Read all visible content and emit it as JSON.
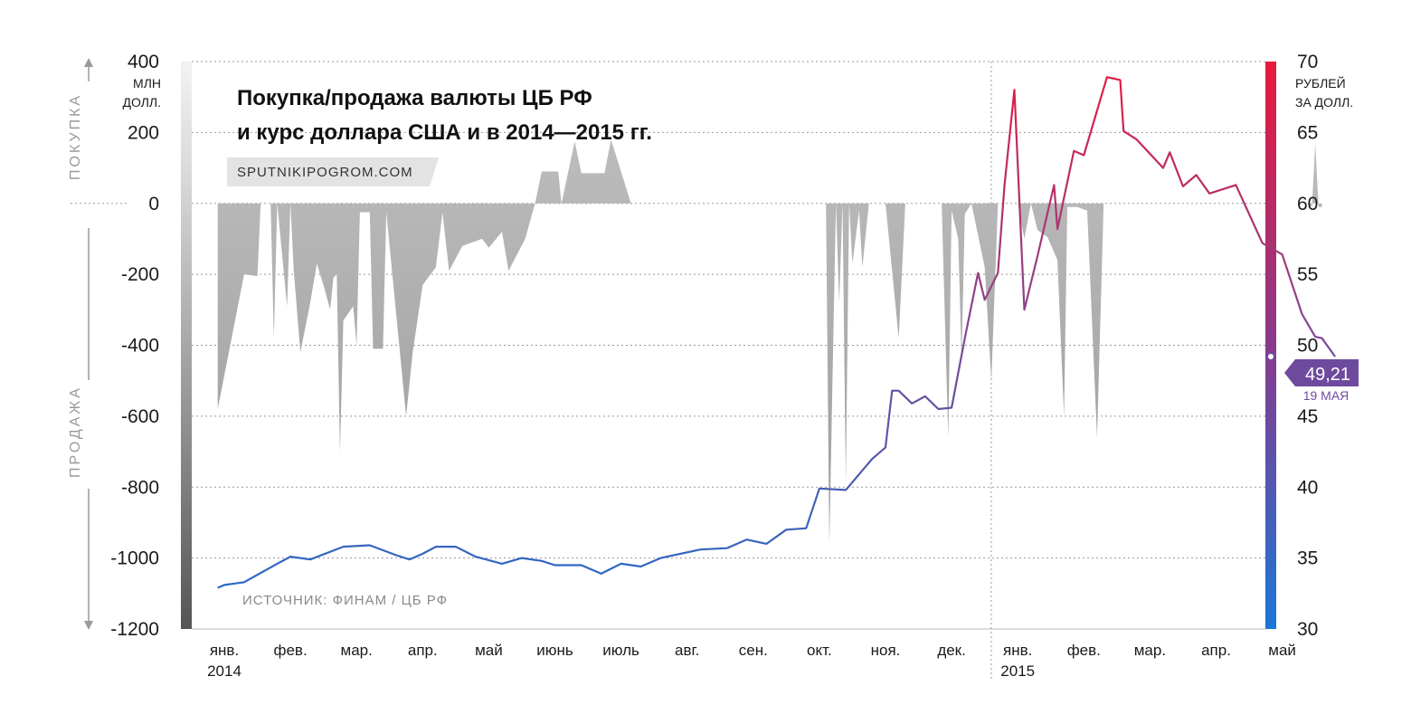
{
  "chart_data": {
    "type": "area+line",
    "title_lines": [
      "Покупка/продажа валюты ЦБ РФ",
      "и курс доллара США и  в 2014—2015 гг."
    ],
    "brand": "SPUTNIKIPOGROM.COM",
    "source": "ИСТОЧНИК: ФИНАМ / ЦБ РФ",
    "left_axis": {
      "unit_lines": [
        "МЛН",
        "ДОЛЛ."
      ],
      "ylim": [
        -1200,
        400
      ],
      "ticks": [
        400,
        200,
        0,
        -200,
        -400,
        -600,
        -800,
        -1000,
        -1200
      ],
      "tick_labels": [
        "400",
        "200",
        "0",
        "-200",
        "-400",
        "-600",
        "-800",
        "-1000",
        "-1200"
      ],
      "side_labels": {
        "top": "ПОКУПКА",
        "bottom": "ПРОДАЖА"
      }
    },
    "right_axis": {
      "unit_lines": [
        "РУБЛЕЙ",
        "ЗА ДОЛЛ."
      ],
      "ylim": [
        30,
        70
      ],
      "ticks": [
        70,
        65,
        60,
        55,
        50,
        45,
        40,
        35,
        30
      ],
      "tick_labels": [
        "70",
        "65",
        "60",
        "55",
        "50",
        "45",
        "40",
        "35",
        "30"
      ]
    },
    "x_axis": {
      "months": [
        "янв.",
        "фев.",
        "мар.",
        "апр.",
        "май",
        "июнь",
        "июль",
        "авг.",
        "сен.",
        "окт.",
        "ноя.",
        "дек.",
        "янв.",
        "фев.",
        "мар.",
        "апр.",
        "май"
      ],
      "years": [
        {
          "label": "2014",
          "month_index": 0
        },
        {
          "label": "2015",
          "month_index": 12
        }
      ],
      "x_range_months": [
        -0.1,
        16.6
      ]
    },
    "series": [
      {
        "kind": "interventions",
        "unit": "млн долл.",
        "points": [
          [
            -0.1,
            -580
          ],
          [
            0.3,
            -200
          ],
          [
            0.5,
            -205
          ],
          [
            0.55,
            0
          ],
          [
            0.7,
            0
          ],
          [
            0.75,
            -380
          ],
          [
            0.8,
            0
          ],
          [
            0.95,
            -290
          ],
          [
            1.0,
            0
          ],
          [
            1.05,
            -190
          ],
          [
            1.15,
            -420
          ],
          [
            1.3,
            -280
          ],
          [
            1.4,
            -170
          ],
          [
            1.5,
            -230
          ],
          [
            1.6,
            -300
          ],
          [
            1.65,
            -210
          ],
          [
            1.7,
            -200
          ],
          [
            1.75,
            -700
          ],
          [
            1.8,
            -330
          ],
          [
            1.95,
            -290
          ],
          [
            2.0,
            -400
          ],
          [
            2.05,
            -25
          ],
          [
            2.2,
            -25
          ],
          [
            2.25,
            -410
          ],
          [
            2.4,
            -410
          ],
          [
            2.45,
            -25
          ],
          [
            2.75,
            -600
          ],
          [
            2.85,
            -420
          ],
          [
            3.0,
            -230
          ],
          [
            3.2,
            -180
          ],
          [
            3.3,
            -25
          ],
          [
            3.4,
            -190
          ],
          [
            3.6,
            -120
          ],
          [
            3.9,
            -100
          ],
          [
            4.0,
            -125
          ],
          [
            4.2,
            -80
          ],
          [
            4.3,
            -190
          ],
          [
            4.55,
            -100
          ],
          [
            4.7,
            0
          ],
          [
            4.8,
            90
          ],
          [
            5.05,
            90
          ],
          [
            5.1,
            0
          ],
          [
            5.3,
            175
          ],
          [
            5.4,
            85
          ],
          [
            5.75,
            85
          ],
          [
            5.85,
            180
          ],
          [
            6.0,
            90
          ],
          [
            6.15,
            0
          ],
          [
            9.1,
            0
          ],
          [
            9.15,
            -960
          ],
          [
            9.25,
            0
          ],
          [
            9.3,
            -280
          ],
          [
            9.35,
            0
          ],
          [
            9.4,
            -785
          ],
          [
            9.45,
            0
          ],
          [
            9.5,
            -170
          ],
          [
            9.6,
            -20
          ],
          [
            9.65,
            -180
          ],
          [
            9.75,
            0
          ],
          [
            10.0,
            0
          ],
          [
            10.2,
            -380
          ],
          [
            10.3,
            0
          ],
          [
            10.85,
            0
          ],
          [
            10.95,
            -660
          ],
          [
            11.0,
            -20
          ],
          [
            11.1,
            -100
          ],
          [
            11.15,
            -440
          ],
          [
            11.2,
            -30
          ],
          [
            11.3,
            0
          ],
          [
            11.5,
            -180
          ],
          [
            11.6,
            -500
          ],
          [
            11.7,
            0
          ],
          [
            12.0,
            0
          ],
          [
            12.1,
            -100
          ],
          [
            12.2,
            0
          ],
          [
            12.3,
            -75
          ],
          [
            12.45,
            -95
          ],
          [
            12.6,
            -160
          ],
          [
            12.7,
            -600
          ],
          [
            12.75,
            -10
          ],
          [
            12.9,
            -10
          ],
          [
            13.05,
            -20
          ],
          [
            13.2,
            -660
          ],
          [
            13.3,
            0
          ],
          [
            16.4,
            0
          ],
          [
            16.45,
            -10
          ],
          [
            16.5,
            170
          ],
          [
            16.55,
            -10
          ],
          [
            16.6,
            -10
          ]
        ]
      },
      {
        "kind": "usd_rub",
        "unit": "руб. за долл.",
        "points": [
          [
            -0.1,
            32.9
          ],
          [
            0.0,
            33.1
          ],
          [
            0.3,
            33.3
          ],
          [
            0.8,
            34.6
          ],
          [
            1.0,
            35.1
          ],
          [
            1.3,
            34.9
          ],
          [
            1.8,
            35.8
          ],
          [
            2.2,
            35.9
          ],
          [
            2.6,
            35.2
          ],
          [
            2.8,
            34.9
          ],
          [
            3.0,
            35.3
          ],
          [
            3.2,
            35.8
          ],
          [
            3.5,
            35.8
          ],
          [
            3.8,
            35.1
          ],
          [
            4.2,
            34.6
          ],
          [
            4.5,
            35.0
          ],
          [
            4.8,
            34.8
          ],
          [
            5.0,
            34.5
          ],
          [
            5.4,
            34.5
          ],
          [
            5.7,
            33.9
          ],
          [
            6.0,
            34.6
          ],
          [
            6.3,
            34.4
          ],
          [
            6.6,
            35.0
          ],
          [
            7.2,
            35.6
          ],
          [
            7.6,
            35.7
          ],
          [
            7.9,
            36.3
          ],
          [
            8.2,
            36.0
          ],
          [
            8.5,
            37.0
          ],
          [
            8.8,
            37.1
          ],
          [
            9.0,
            39.9
          ],
          [
            9.4,
            39.8
          ],
          [
            9.8,
            42.0
          ],
          [
            10.0,
            42.8
          ],
          [
            10.1,
            46.8
          ],
          [
            10.2,
            46.8
          ],
          [
            10.4,
            45.9
          ],
          [
            10.6,
            46.4
          ],
          [
            10.8,
            45.5
          ],
          [
            11.0,
            45.6
          ],
          [
            11.2,
            50.5
          ],
          [
            11.4,
            55.1
          ],
          [
            11.5,
            53.2
          ],
          [
            11.7,
            55.1
          ],
          [
            11.8,
            61.3
          ],
          [
            11.95,
            68.0
          ],
          [
            12.1,
            52.5
          ],
          [
            12.3,
            56.3
          ],
          [
            12.55,
            61.3
          ],
          [
            12.6,
            58.2
          ],
          [
            12.85,
            63.7
          ],
          [
            13.0,
            63.4
          ],
          [
            13.35,
            68.9
          ],
          [
            13.55,
            68.7
          ],
          [
            13.6,
            65.1
          ],
          [
            13.8,
            64.5
          ],
          [
            14.2,
            62.5
          ],
          [
            14.3,
            63.6
          ],
          [
            14.5,
            61.2
          ],
          [
            14.7,
            62.0
          ],
          [
            14.9,
            60.7
          ],
          [
            15.3,
            61.3
          ],
          [
            15.7,
            57.2
          ],
          [
            16.0,
            56.4
          ],
          [
            16.3,
            52.2
          ],
          [
            16.5,
            50.6
          ],
          [
            16.6,
            50.5
          ],
          [
            16.8,
            49.2
          ]
        ],
        "last_value_label": "49,21",
        "last_date_label": "19 МАЯ"
      }
    ]
  }
}
